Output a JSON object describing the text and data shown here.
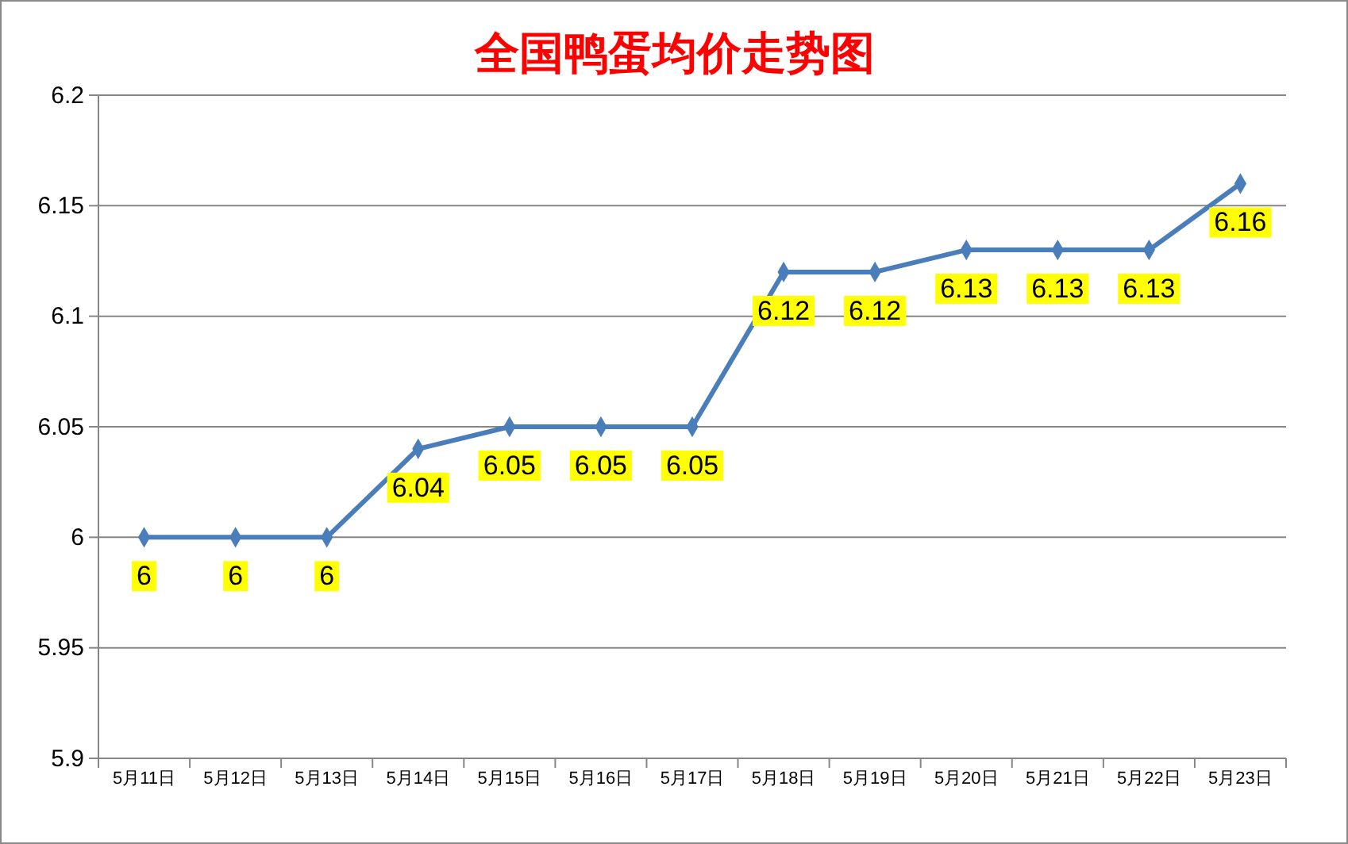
{
  "chart_data": {
    "type": "line",
    "title": "全国鸭蛋均价走势图",
    "categories": [
      "5月11日",
      "5月12日",
      "5月13日",
      "5月14日",
      "5月15日",
      "5月16日",
      "5月17日",
      "5月18日",
      "5月19日",
      "5月20日",
      "5月21日",
      "5月22日",
      "5月23日"
    ],
    "series": [
      {
        "color": "#4a7ebb",
        "values": [
          6,
          6,
          6,
          6.04,
          6.05,
          6.05,
          6.05,
          6.12,
          6.12,
          6.13,
          6.13,
          6.13,
          6.16
        ]
      }
    ],
    "ylim": [
      5.9,
      6.2
    ],
    "yticks": [
      5.9,
      5.95,
      6,
      6.05,
      6.1,
      6.15,
      6.2
    ],
    "grid": "y",
    "marker": "diamond",
    "line_style": "solid",
    "data_labels": true
  }
}
